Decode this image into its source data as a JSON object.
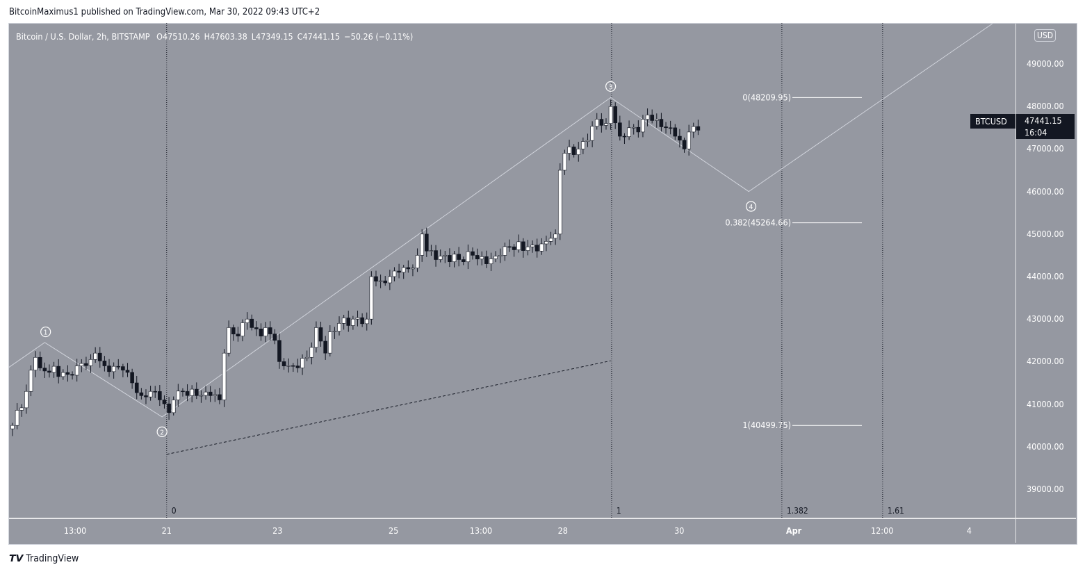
{
  "published": "BitcoinMaximus1 published on TradingView.com, Mar 30, 2022 09:43 UTC+2",
  "legend": {
    "title": "Bitcoin / U.S. Dollar, 2h, BITSTAMP",
    "open": "O47510.26",
    "high": "H47603.38",
    "low": "L47349.15",
    "close": "C47441.15",
    "change": "−50.26 (−0.11%)"
  },
  "currency": "USD",
  "symbol_tag": {
    "symbol": "BTCUSD",
    "price": "47441.15",
    "countdown": "16:04"
  },
  "footer": {
    "logo": "17",
    "brand": "TradingView"
  },
  "chart_data": {
    "type": "candlestick",
    "ylim": [
      38500,
      49950
    ],
    "y_ticks": [
      "49000.00",
      "48000.00",
      "47000.00",
      "46000.00",
      "45000.00",
      "44000.00",
      "43000.00",
      "42000.00",
      "41000.00",
      "40000.00",
      "39000.00"
    ],
    "x_ticks": [
      {
        "label": "13:00",
        "i": 13.6
      },
      {
        "label": "21",
        "i": 33.5
      },
      {
        "label": "23",
        "i": 57.6
      },
      {
        "label": "25",
        "i": 82.8
      },
      {
        "label": "13:00",
        "i": 101.8
      },
      {
        "label": "28",
        "i": 119.6
      },
      {
        "label": "30",
        "i": 144.9
      },
      {
        "label": "Apr",
        "i": 169.8,
        "bold": true
      },
      {
        "label": "12:00",
        "i": 189
      },
      {
        "label": "4",
        "i": 207.9
      }
    ],
    "close_path": [
      [
        0,
        40500
      ],
      [
        3,
        41300
      ],
      [
        4,
        41800
      ],
      [
        5,
        42100
      ],
      [
        6,
        41850
      ],
      [
        12,
        41700
      ],
      [
        14,
        41900
      ],
      [
        17,
        42050
      ],
      [
        18,
        42200
      ],
      [
        20,
        41900
      ],
      [
        24,
        41800
      ],
      [
        26,
        41500
      ],
      [
        28,
        41200
      ],
      [
        30,
        41300
      ],
      [
        32,
        41100
      ],
      [
        34,
        40800
      ],
      [
        35,
        41100
      ],
      [
        37,
        41300
      ],
      [
        40,
        41200
      ],
      [
        43,
        41200
      ],
      [
        45,
        41100
      ],
      [
        46,
        42200
      ],
      [
        47,
        42800
      ],
      [
        49,
        42600
      ],
      [
        51,
        43000
      ],
      [
        52,
        42800
      ],
      [
        54,
        42600
      ],
      [
        55,
        42800
      ],
      [
        57,
        42500
      ],
      [
        58,
        42000
      ],
      [
        61,
        41900
      ],
      [
        64,
        42100
      ],
      [
        66,
        42800
      ],
      [
        68,
        42200
      ],
      [
        69,
        42700
      ],
      [
        71,
        42900
      ],
      [
        74,
        43000
      ],
      [
        77,
        43000
      ],
      [
        78,
        44000
      ],
      [
        80,
        43900
      ],
      [
        82,
        44000
      ],
      [
        84,
        44100
      ],
      [
        87,
        44200
      ],
      [
        88,
        44500
      ],
      [
        89,
        45000
      ],
      [
        90,
        44600
      ],
      [
        92,
        44400
      ],
      [
        94,
        44500
      ],
      [
        97,
        44400
      ],
      [
        100,
        44500
      ],
      [
        103,
        44300
      ],
      [
        106,
        44500
      ],
      [
        108,
        44700
      ],
      [
        112,
        44700
      ],
      [
        114,
        44600
      ],
      [
        117,
        44900
      ],
      [
        118,
        45000
      ],
      [
        119,
        46500
      ],
      [
        120,
        46900
      ],
      [
        123,
        47000
      ],
      [
        125,
        47200
      ],
      [
        127,
        47700
      ],
      [
        129,
        47600
      ],
      [
        130,
        48000
      ],
      [
        132,
        47300
      ],
      [
        134,
        47500
      ],
      [
        136,
        47400
      ],
      [
        138,
        47800
      ],
      [
        140,
        47700
      ],
      [
        142,
        47500
      ],
      [
        144,
        47300
      ],
      [
        146,
        47000
      ],
      [
        147,
        47400
      ],
      [
        149,
        47441.15
      ]
    ],
    "wave_path": [
      [
        -1,
        41850
      ],
      [
        7,
        42450
      ],
      [
        32.5,
        40700
      ],
      [
        130,
        48210
      ],
      [
        160,
        46000
      ],
      [
        213,
        49950
      ]
    ],
    "wave_labels": [
      {
        "label": "1",
        "i": 7.2,
        "p": 42700
      },
      {
        "label": "2",
        "i": 32.5,
        "p": 40350
      },
      {
        "label": "3",
        "i": 130,
        "p": 48470
      },
      {
        "label": "4",
        "i": 160.5,
        "p": 45650
      }
    ],
    "dashed_trend": [
      [
        33.5,
        39820
      ],
      [
        130,
        42020
      ]
    ],
    "fib_time": [
      {
        "label": "0",
        "i": 33.5
      },
      {
        "label": "1",
        "i": 130.2
      },
      {
        "label": "1.382",
        "i": 167.2
      },
      {
        "label": "1.61",
        "i": 189.1
      }
    ],
    "fib_levels": [
      {
        "label": "0(48209.95)",
        "p": 48209.95
      },
      {
        "label": "0.382(45264.66)",
        "p": 45264.66
      },
      {
        "label": "1(40499.75)",
        "p": 40499.75
      }
    ]
  }
}
